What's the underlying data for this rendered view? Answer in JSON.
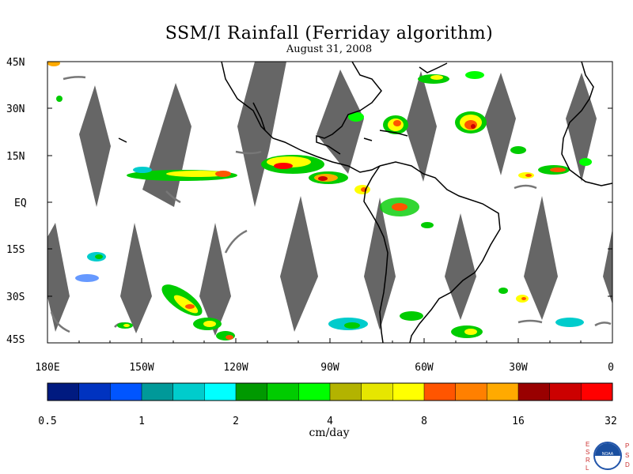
{
  "title": "SSM/I Rainfall (Ferriday algorithm)",
  "subtitle": "August 31, 2008",
  "lat_labels": [
    "45N",
    "30N",
    "15N",
    "EQ",
    "15S",
    "30S",
    "45S"
  ],
  "lon_labels": [
    "180E",
    "150W",
    "120W",
    "90W",
    "60W",
    "30W",
    "0"
  ],
  "colorbar": {
    "unit": "cm/day",
    "tick_labels": [
      "0.5",
      "1",
      "2",
      "4",
      "8",
      "16",
      "32"
    ],
    "colors": [
      "#001a80",
      "#0033c0",
      "#0055ff",
      "#009999",
      "#00cccc",
      "#00ffff",
      "#009900",
      "#00cc00",
      "#00ff00",
      "#b3b300",
      "#e6e600",
      "#ffff00",
      "#ff5500",
      "#ff8000",
      "#ffaa00",
      "#990000",
      "#cc0000",
      "#ff0000"
    ]
  },
  "logo": {
    "left_letters": [
      "E",
      "S",
      "R",
      "L"
    ],
    "right_letters": [
      "P",
      "S",
      "D"
    ],
    "center_text": "NOAA",
    "icon": "noaa-logo-icon"
  },
  "map": {
    "lon_range": [
      -180,
      0
    ],
    "lat_range": [
      -45,
      45
    ],
    "missing_color": "#666666",
    "coast_color": "#000000"
  }
}
